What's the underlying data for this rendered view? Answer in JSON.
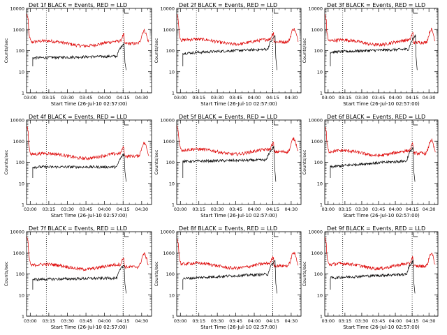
{
  "chart_data": {
    "type": "line",
    "grid": false,
    "yscale": "log",
    "ylim": [
      1,
      10000
    ],
    "ylabel": "Counts/sec",
    "y_ticks": [
      "1",
      "10",
      "100",
      "1000",
      "10000"
    ],
    "xlabel": "Start Time (26-Jul-10 02:57:00)",
    "xlim": [
      "02:57",
      "04:38"
    ],
    "x_ticks": [
      "03:00",
      "03:15",
      "03:30",
      "03:45",
      "04:00",
      "04:15",
      "04:30"
    ],
    "markers": [
      "03:13",
      "04:15"
    ],
    "series_colors": {
      "black": "#000000",
      "red": "#dd0000"
    },
    "panels": [
      {
        "title": "Det 1f BLACK = Events, RED = LLD",
        "red_level": 240,
        "black_level": 45,
        "black_x": [
          "03:02",
          "04:16"
        ],
        "black_end_level": 55
      },
      {
        "title": "Det 2f BLACK = Events, RED = LLD",
        "red_level": 290,
        "black_level": 75,
        "black_x": [
          "03:02",
          "04:17"
        ],
        "black_end_level": 120
      },
      {
        "title": "Det 3f BLACK = Events, RED = LLD",
        "red_level": 270,
        "black_level": 85,
        "black_x": [
          "03:02",
          "04:18"
        ],
        "black_end_level": 120
      },
      {
        "title": "Det 4f BLACK = Events, RED = LLD",
        "red_level": 220,
        "black_level": 60,
        "black_x": [
          "03:02",
          "04:16"
        ],
        "black_end_level": 60
      },
      {
        "title": "Det 5f BLACK = Events, RED = LLD",
        "red_level": 350,
        "black_level": 110,
        "black_x": [
          "03:02",
          "04:16"
        ],
        "black_end_level": 130
      },
      {
        "title": "Det 6f BLACK = Events, RED = LLD",
        "red_level": 300,
        "black_level": 60,
        "black_x": [
          "03:02",
          "04:16"
        ],
        "black_end_level": 120
      },
      {
        "title": "Det 7f BLACK = Events, RED = LLD",
        "red_level": 240,
        "black_level": 55,
        "black_x": [
          "03:02",
          "04:16"
        ],
        "black_end_level": 65
      },
      {
        "title": "Det 8f BLACK = Events, RED = LLD",
        "red_level": 270,
        "black_level": 60,
        "black_x": [
          "03:02",
          "04:17"
        ],
        "black_end_level": 100
      },
      {
        "title": "Det 9f BLACK = Events, RED = LLD",
        "red_level": 260,
        "black_level": 65,
        "black_x": [
          "03:02",
          "04:16"
        ],
        "black_end_level": 100
      }
    ]
  }
}
